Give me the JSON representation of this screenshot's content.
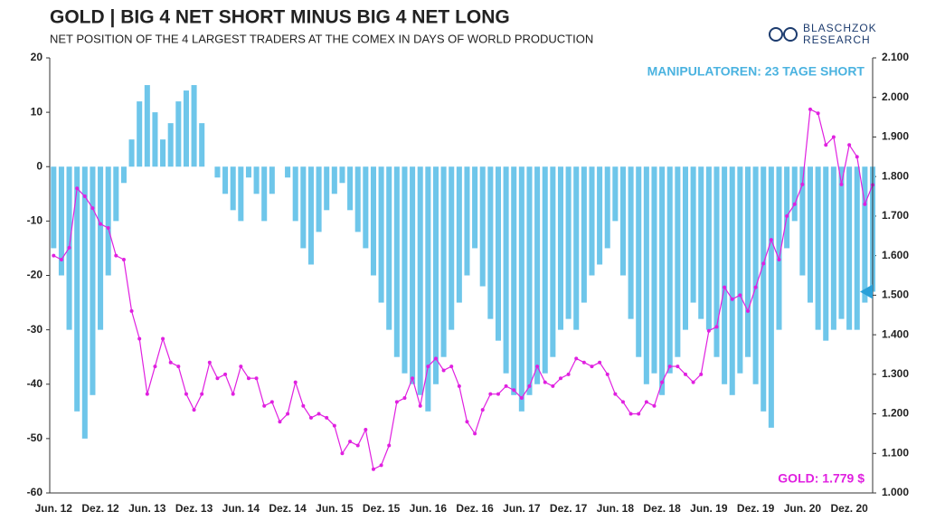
{
  "chart_data": {
    "type": "bar_line",
    "title": "GOLD | BIG 4 NET SHORT MINUS BIG 4 NET LONG",
    "subtitle": "NET POSITION OF THE 4 LARGEST TRADERS AT THE COMEX IN DAYS OF WORLD PRODUCTION",
    "brand": [
      "BLASCHZOK",
      "RESEARCH"
    ],
    "annotations": [
      "MANIPULATOREN: 23 TAGE SHORT",
      "GOLD: 1.779 $"
    ],
    "categories": [
      "Jun. 12",
      null,
      null,
      null,
      null,
      null,
      "Dez. 12",
      null,
      null,
      null,
      null,
      null,
      "Jun. 13",
      null,
      null,
      null,
      null,
      null,
      "Dez. 13",
      null,
      null,
      null,
      null,
      null,
      "Jun. 14",
      null,
      null,
      null,
      null,
      null,
      "Dez. 14",
      null,
      null,
      null,
      null,
      null,
      "Jun. 15",
      null,
      null,
      null,
      null,
      null,
      "Dez. 15",
      null,
      null,
      null,
      null,
      null,
      "Jun. 16",
      null,
      null,
      null,
      null,
      null,
      "Dez. 16",
      null,
      null,
      null,
      null,
      null,
      "Jun. 17",
      null,
      null,
      null,
      null,
      null,
      "Dez. 17",
      null,
      null,
      null,
      null,
      null,
      "Jun. 18",
      null,
      null,
      null,
      null,
      null,
      "Dez. 18",
      null,
      null,
      null,
      null,
      null,
      "Jun. 19",
      null,
      null,
      null,
      null,
      null,
      "Dez. 19",
      null,
      null,
      null,
      null,
      null,
      "Jun. 20",
      null,
      null,
      null,
      null,
      null,
      "Dez. 20",
      null,
      null,
      null
    ],
    "series": [
      {
        "color": "#6ec6ea",
        "type": "bar",
        "values": [
          -15,
          -20,
          -30,
          -45,
          -50,
          -42,
          -30,
          -20,
          -10,
          -3,
          5,
          12,
          15,
          10,
          5,
          8,
          12,
          14,
          15,
          8,
          0,
          -2,
          -5,
          -8,
          -10,
          -2,
          -5,
          -10,
          -5,
          0,
          -2,
          -10,
          -15,
          -18,
          -12,
          -8,
          -5,
          -3,
          -8,
          -12,
          -15,
          -20,
          -25,
          -30,
          -35,
          -38,
          -40,
          -42,
          -45,
          -40,
          -35,
          -30,
          -25,
          -20,
          -15,
          -22,
          -28,
          -32,
          -38,
          -42,
          -45,
          -42,
          -40,
          -38,
          -35,
          -30,
          -28,
          -30,
          -25,
          -20,
          -18,
          -15,
          -10,
          -20,
          -28,
          -35,
          -40,
          -38,
          -42,
          -38,
          -35,
          -30,
          -25,
          -28,
          -30,
          -35,
          -40,
          -42,
          -38,
          -35,
          -40,
          -45,
          -48,
          -30,
          -15,
          -10,
          -20,
          -25,
          -30,
          -32,
          -30,
          -28,
          -30,
          -30,
          -25,
          -23
        ]
      },
      {
        "color": "#e020e0",
        "type": "line",
        "axis": "y2",
        "values": [
          1600,
          1590,
          1620,
          1770,
          1750,
          1720,
          1680,
          1670,
          1600,
          1590,
          1460,
          1390,
          1250,
          1320,
          1390,
          1330,
          1320,
          1250,
          1210,
          1250,
          1330,
          1290,
          1300,
          1250,
          1320,
          1290,
          1290,
          1220,
          1230,
          1180,
          1200,
          1280,
          1220,
          1190,
          1200,
          1190,
          1170,
          1100,
          1130,
          1120,
          1160,
          1060,
          1070,
          1120,
          1230,
          1240,
          1290,
          1220,
          1320,
          1340,
          1310,
          1320,
          1270,
          1180,
          1150,
          1210,
          1250,
          1250,
          1270,
          1260,
          1240,
          1270,
          1320,
          1280,
          1270,
          1290,
          1300,
          1340,
          1330,
          1320,
          1330,
          1300,
          1250,
          1230,
          1200,
          1200,
          1230,
          1220,
          1280,
          1320,
          1320,
          1300,
          1280,
          1300,
          1410,
          1420,
          1520,
          1490,
          1500,
          1460,
          1520,
          1580,
          1640,
          1590,
          1700,
          1730,
          1780,
          1970,
          1960,
          1880,
          1900,
          1780,
          1880,
          1850,
          1730,
          1779
        ]
      }
    ],
    "ylim": [
      -60,
      20
    ],
    "yticks": [
      -60,
      -50,
      -40,
      -30,
      -20,
      -10,
      0,
      10,
      20
    ],
    "y2lim": [
      1000,
      2100
    ],
    "y2ticks": [
      {
        "value": 1000,
        "label": "1.000"
      },
      {
        "value": 1100,
        "label": "1.100"
      },
      {
        "value": 1200,
        "label": "1.200"
      },
      {
        "value": 1300,
        "label": "1.300"
      },
      {
        "value": 1400,
        "label": "1.400"
      },
      {
        "value": 1500,
        "label": "1.500"
      },
      {
        "value": 1600,
        "label": "1.600"
      },
      {
        "value": 1700,
        "label": "1.700"
      },
      {
        "value": 1800,
        "label": "1.800"
      },
      {
        "value": 1900,
        "label": "1.900"
      },
      {
        "value": 2000,
        "label": "2.000"
      },
      {
        "value": 2100,
        "label": "2.100"
      }
    ],
    "grid": false
  }
}
